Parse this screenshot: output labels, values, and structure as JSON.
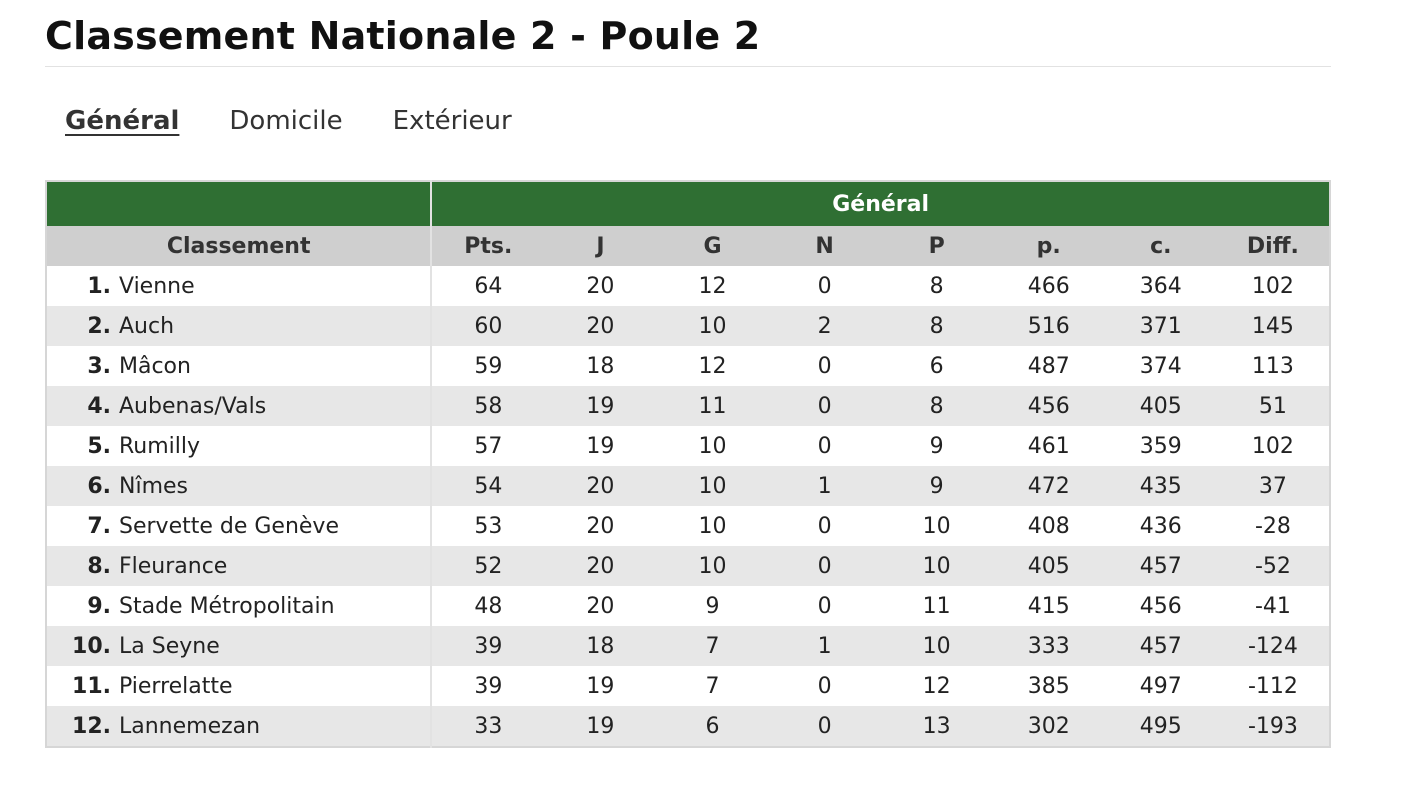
{
  "page": {
    "title": "Classement Nationale 2 - Poule 2"
  },
  "tabs": [
    {
      "label": "Général",
      "active": true
    },
    {
      "label": "Domicile",
      "active": false
    },
    {
      "label": "Extérieur",
      "active": false
    }
  ],
  "table": {
    "group_header": "Général",
    "columns": [
      "Classement",
      "Pts.",
      "J",
      "G",
      "N",
      "P",
      "p.",
      "c.",
      "Diff."
    ],
    "rows": [
      {
        "rank": "1.",
        "team": "Vienne",
        "stats": [
          "64",
          "20",
          "12",
          "0",
          "8",
          "466",
          "364",
          "102"
        ]
      },
      {
        "rank": "2.",
        "team": "Auch",
        "stats": [
          "60",
          "20",
          "10",
          "2",
          "8",
          "516",
          "371",
          "145"
        ]
      },
      {
        "rank": "3.",
        "team": "Mâcon",
        "stats": [
          "59",
          "18",
          "12",
          "0",
          "6",
          "487",
          "374",
          "113"
        ]
      },
      {
        "rank": "4.",
        "team": "Aubenas/Vals",
        "stats": [
          "58",
          "19",
          "11",
          "0",
          "8",
          "456",
          "405",
          "51"
        ]
      },
      {
        "rank": "5.",
        "team": "Rumilly",
        "stats": [
          "57",
          "19",
          "10",
          "0",
          "9",
          "461",
          "359",
          "102"
        ]
      },
      {
        "rank": "6.",
        "team": "Nîmes",
        "stats": [
          "54",
          "20",
          "10",
          "1",
          "9",
          "472",
          "435",
          "37"
        ]
      },
      {
        "rank": "7.",
        "team": "Servette de Genève",
        "stats": [
          "53",
          "20",
          "10",
          "0",
          "10",
          "408",
          "436",
          "-28"
        ]
      },
      {
        "rank": "8.",
        "team": "Fleurance",
        "stats": [
          "52",
          "20",
          "10",
          "0",
          "10",
          "405",
          "457",
          "-52"
        ]
      },
      {
        "rank": "9.",
        "team": "Stade Métropolitain",
        "stats": [
          "48",
          "20",
          "9",
          "0",
          "11",
          "415",
          "456",
          "-41"
        ]
      },
      {
        "rank": "10.",
        "team": "La Seyne",
        "stats": [
          "39",
          "18",
          "7",
          "1",
          "10",
          "333",
          "457",
          "-124"
        ]
      },
      {
        "rank": "11.",
        "team": "Pierrelatte",
        "stats": [
          "39",
          "19",
          "7",
          "0",
          "12",
          "385",
          "497",
          "-112"
        ]
      },
      {
        "rank": "12.",
        "team": "Lannemezan",
        "stats": [
          "33",
          "19",
          "6",
          "0",
          "13",
          "302",
          "495",
          "-193"
        ]
      }
    ]
  },
  "colors": {
    "header_green": "#2f6f33",
    "column_header_gray": "#cfcfcf",
    "stripe_gray": "#e7e7e7"
  }
}
